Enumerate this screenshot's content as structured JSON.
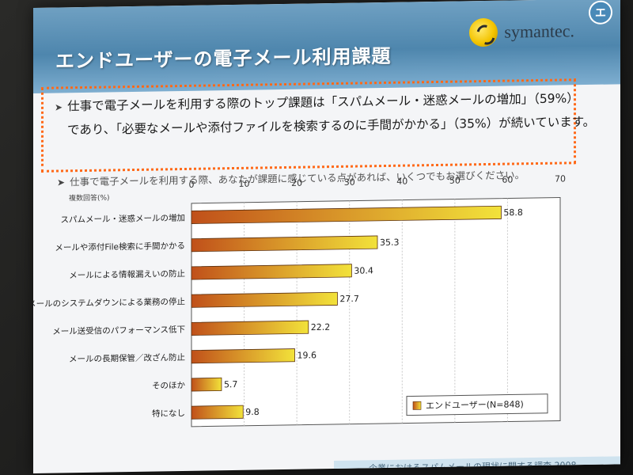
{
  "slide": {
    "title": "エンドユーザーの電子メール利用課題",
    "logo_text": "symantec.",
    "corner_badge": "エ",
    "callout_line1": "仕事で電子メールを利用する際のトップ課題は「スパムメール・迷惑メールの増加」（59%）",
    "callout_line2": "であり、「必要なメールや添付ファイルを検索するのに手間がかかる」（35%）が続いています。",
    "question": "仕事で電子メールを利用する際、あなたが課題に感じている点があれば、いくつでもお選びください。",
    "footer": "企業におけるスパムメールの現状に関する調査 2008"
  },
  "colors": {
    "bar_start": "#c0501a",
    "bar_end": "#f2e23a",
    "callout_border": "#ff6a1a",
    "title_band": "#5a8fb5"
  },
  "chart_data": {
    "type": "bar",
    "orientation": "horizontal",
    "note_label": "複数回答(%)",
    "categories": [
      "スパムメール・迷惑メールの増加",
      "メールや添付File検索に手間かかる",
      "メールによる情報漏えいの防止",
      "メールのシステムダウンによる業務の停止",
      "メール送受信のパフォーマンス低下",
      "メールの長期保管／改ざん防止",
      "そのほか",
      "特になし"
    ],
    "series": [
      {
        "name": "エンドユーザー(N=848)",
        "values": [
          58.8,
          35.3,
          30.4,
          27.7,
          22.2,
          19.6,
          5.7,
          9.8
        ]
      }
    ],
    "value_labels": [
      "58.8",
      "35.3",
      "30.4",
      "27.7",
      "22.2",
      "19.6",
      "5.7",
      "9.8"
    ],
    "xlim": [
      0,
      70
    ],
    "x_ticks": [
      "0",
      "10",
      "20",
      "30",
      "40",
      "50",
      "60",
      "70"
    ],
    "grid": true,
    "legend_position": "bottom-right"
  }
}
